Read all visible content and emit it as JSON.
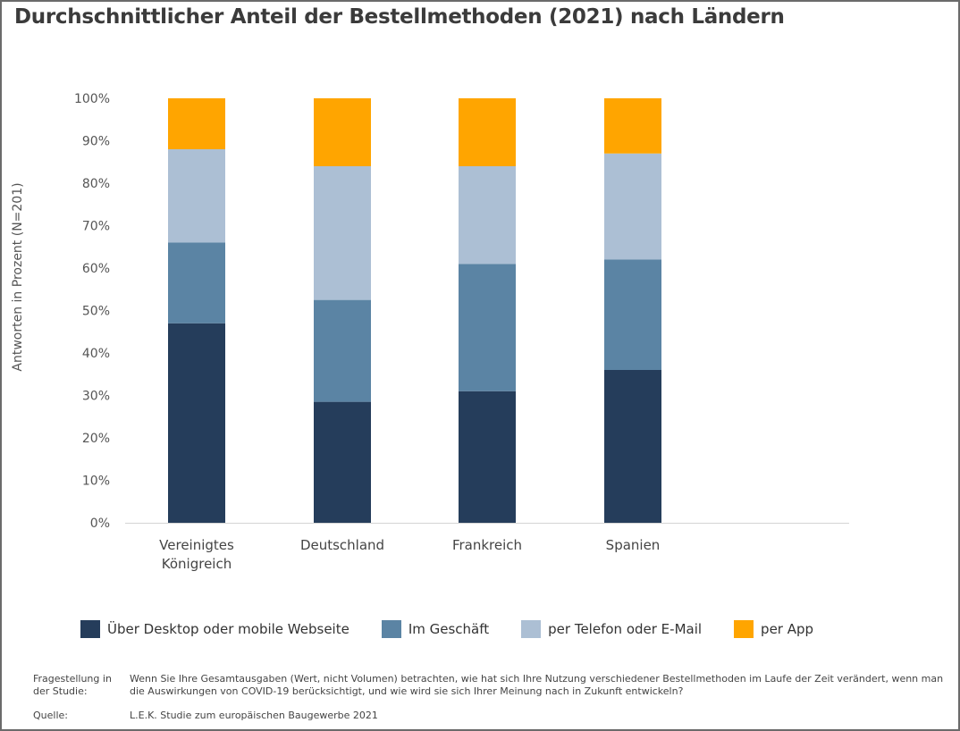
{
  "title": "Durchschnittlicher Anteil der Bestellmethoden (2021) nach Ländern",
  "chart_data": {
    "type": "bar",
    "stacked": true,
    "title": "Durchschnittlicher Anteil der Bestellmethoden (2021) nach Ländern",
    "xlabel": "",
    "ylabel": "Antworten in Prozent (N=201)",
    "ylim": [
      0,
      100
    ],
    "yticks": [
      "0%",
      "10%",
      "20%",
      "30%",
      "40%",
      "50%",
      "60%",
      "70%",
      "80%",
      "90%",
      "100%"
    ],
    "categories": [
      "Vereinigtes Königreich",
      "Deutschland",
      "Frankreich",
      "Spanien"
    ],
    "category_lines": [
      [
        "Vereinigtes",
        "Königreich"
      ],
      [
        "Deutschland"
      ],
      [
        "Frankreich"
      ],
      [
        "Spanien"
      ]
    ],
    "series": [
      {
        "name": "Über Desktop oder mobile Webseite",
        "color": "#253d5b",
        "values": [
          47,
          28.5,
          31,
          36
        ]
      },
      {
        "name": "Im Geschäft",
        "color": "#5b84a4",
        "values": [
          19,
          24,
          30,
          26
        ]
      },
      {
        "name": "per Telefon oder E-Mail",
        "color": "#acbfd4",
        "values": [
          22,
          31.5,
          23,
          25
        ]
      },
      {
        "name": "per App",
        "color": "#ffa500",
        "values": [
          12,
          16,
          16,
          13
        ]
      }
    ],
    "legend_position": "bottom"
  },
  "footer": {
    "question_label": "Fragestellung in der Studie:",
    "question_label_lines": [
      "Fragestellung in",
      "der Studie:"
    ],
    "question_text": "Wenn Sie Ihre Gesamtausgaben (Wert, nicht Volumen) betrachten, wie hat sich Ihre Nutzung verschiedener Bestellmethoden im Laufe der Zeit verändert, wenn man die Auswirkungen von COVID-19 berücksichtigt, und wie wird sie sich Ihrer Meinung nach in Zukunft entwickeln?",
    "source_label": "Quelle:",
    "source_text": "L.E.K. Studie zum europäischen Baugewerbe 2021"
  }
}
